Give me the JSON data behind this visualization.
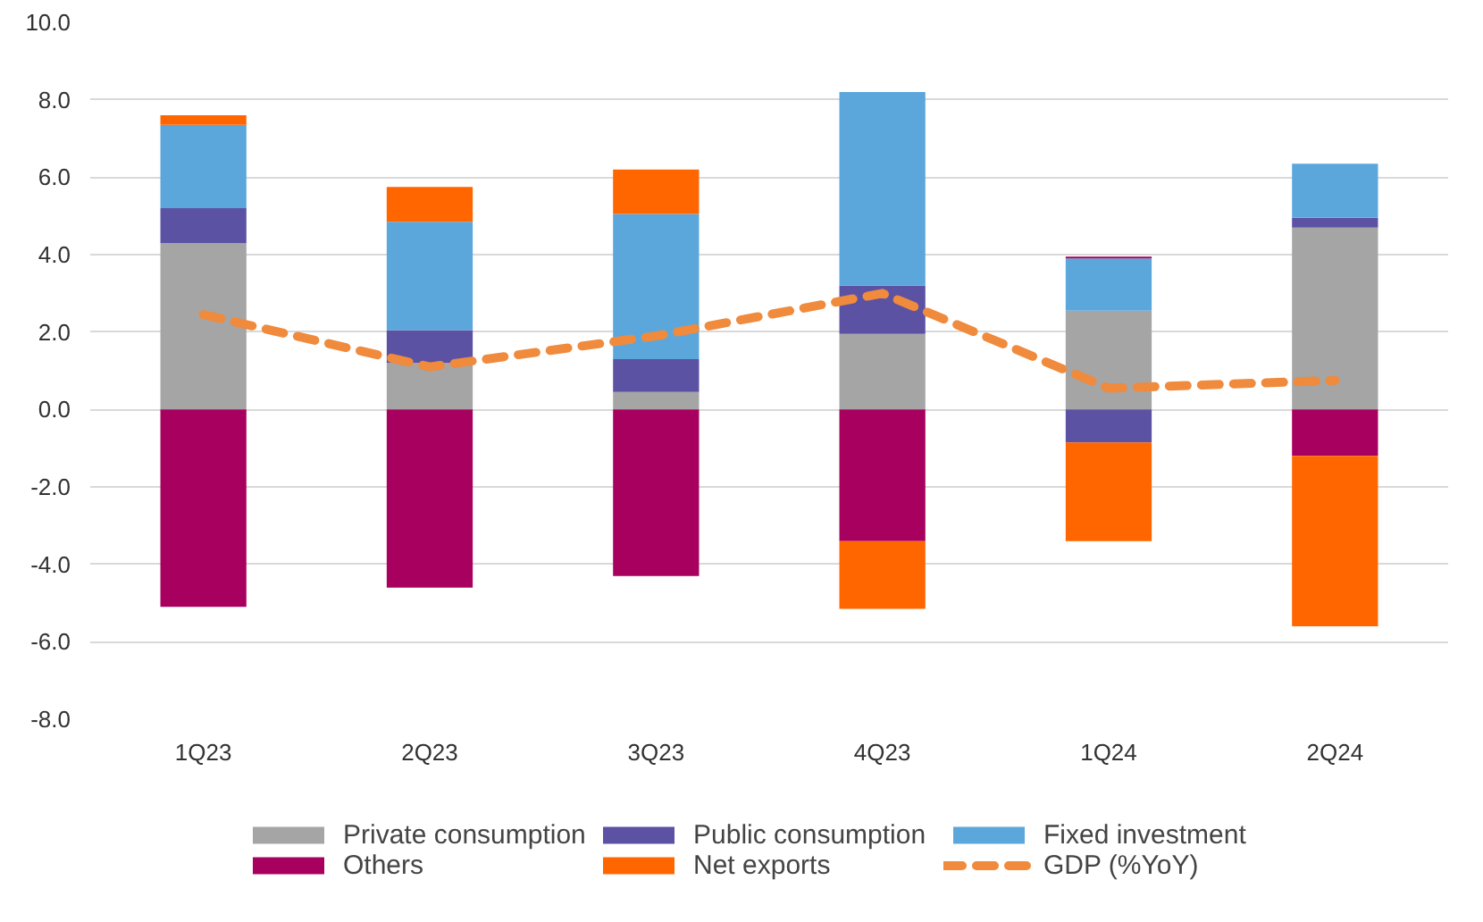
{
  "chart_data": {
    "type": "bar",
    "stacked": true,
    "categories": [
      "1Q23",
      "2Q23",
      "3Q23",
      "4Q23",
      "1Q24",
      "2Q24"
    ],
    "series": [
      {
        "name": "Private consumption",
        "color": "#a5a5a5",
        "values": [
          4.3,
          1.2,
          0.45,
          1.95,
          2.55,
          4.7
        ]
      },
      {
        "name": "Public consumption",
        "color": "#5b52a3",
        "values": [
          0.9,
          0.85,
          0.85,
          1.25,
          -0.85,
          0.25
        ]
      },
      {
        "name": "Fixed investment",
        "color": "#5ba7dc",
        "values": [
          2.15,
          2.8,
          3.75,
          5.0,
          1.35,
          1.4
        ]
      },
      {
        "name": "Others",
        "color": "#a8005e",
        "values": [
          -5.1,
          -4.6,
          -4.3,
          -3.4,
          0.05,
          -1.2
        ]
      },
      {
        "name": "Net exports",
        "color": "#ff6600",
        "values": [
          0.25,
          0.9,
          1.15,
          -1.75,
          -2.55,
          -4.4
        ]
      },
      {
        "name": "GDP (%YoY)",
        "color": "#f08a3c",
        "type": "line",
        "line_style": "dashed",
        "values": [
          2.45,
          1.1,
          1.9,
          3.0,
          0.55,
          0.75
        ]
      }
    ],
    "ylim": [
      -8,
      10
    ],
    "yticks": [
      {
        "value": -8,
        "label": "-8.0"
      },
      {
        "value": -6,
        "label": "-6.0"
      },
      {
        "value": -4,
        "label": "-4.0"
      },
      {
        "value": -2,
        "label": "-2.0"
      },
      {
        "value": 0,
        "label": "0.0"
      },
      {
        "value": 2,
        "label": "2.0"
      },
      {
        "value": 4,
        "label": "4.0"
      },
      {
        "value": 6,
        "label": "6.0"
      },
      {
        "value": 8,
        "label": "8.0"
      },
      {
        "value": 10,
        "label": "10.0"
      }
    ],
    "grid": "y",
    "legend": "bottom"
  }
}
